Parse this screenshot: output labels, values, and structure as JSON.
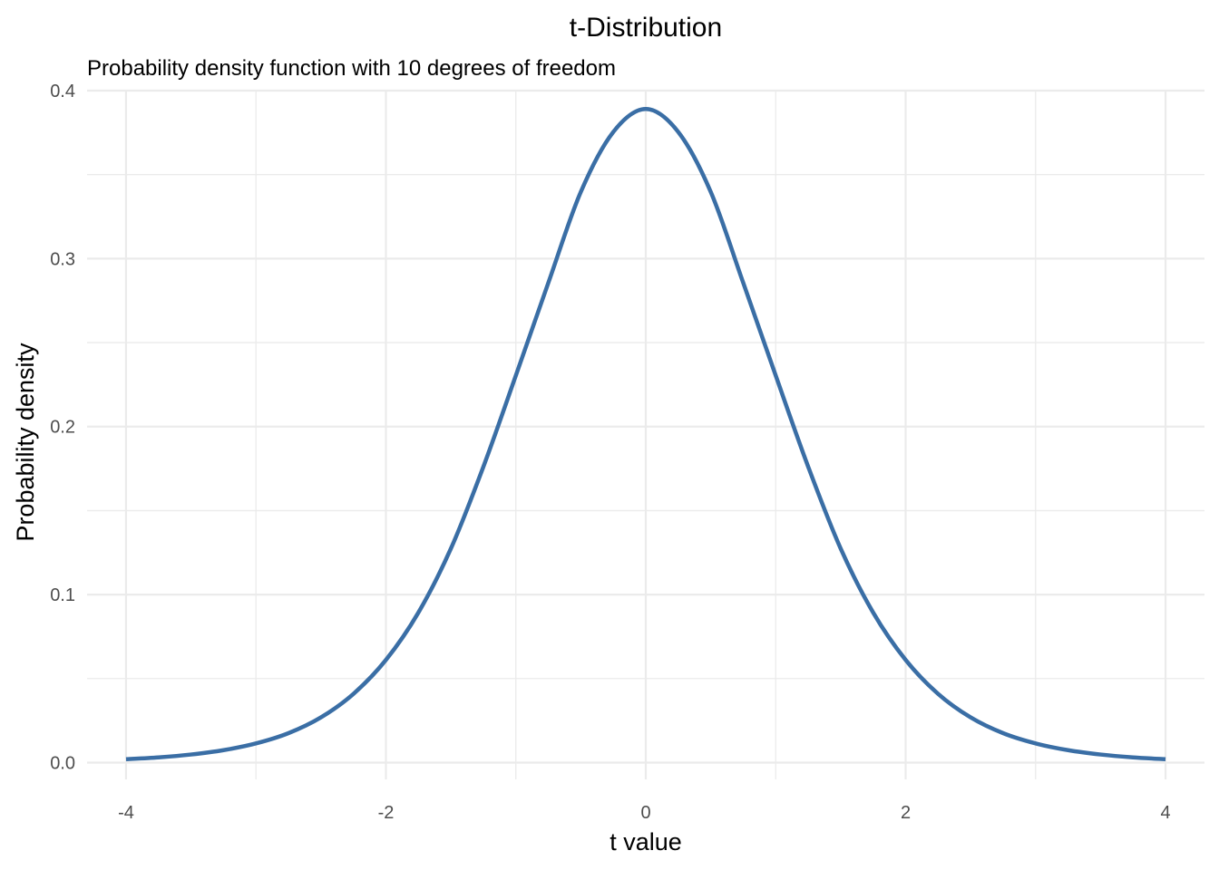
{
  "chart_data": {
    "type": "line",
    "title": "t-Distribution",
    "subtitle": "Probability density function with 10 degrees of freedom",
    "xlabel": "t value",
    "ylabel": "Probability density",
    "xlim": [
      -4.3,
      4.3
    ],
    "ylim": [
      -0.01,
      0.4
    ],
    "x_ticks": [
      -4,
      -2,
      0,
      2,
      4
    ],
    "x_tick_labels": [
      "-4",
      "-2",
      "0",
      "2",
      "4"
    ],
    "x_minor_ticks": [
      -3,
      -1,
      1,
      3
    ],
    "y_ticks": [
      0.0,
      0.1,
      0.2,
      0.3,
      0.4
    ],
    "y_tick_labels": [
      "0.0",
      "0.1",
      "0.2",
      "0.3",
      "0.4"
    ],
    "y_minor_ticks": [
      0.05,
      0.15,
      0.25,
      0.35
    ],
    "grid": true,
    "legend": "none",
    "line_color": "#3a6ea5",
    "series": [
      {
        "x": [
          -4.0,
          -3.75,
          -3.5,
          -3.25,
          -3.0,
          -2.75,
          -2.5,
          -2.25,
          -2.0,
          -1.75,
          -1.5,
          -1.25,
          -1.0,
          -0.75,
          -0.5,
          -0.25,
          0.0,
          0.25,
          0.5,
          0.75,
          1.0,
          1.25,
          1.5,
          1.75,
          2.0,
          2.25,
          2.5,
          2.75,
          3.0,
          3.25,
          3.5,
          3.75,
          4.0
        ],
        "y": [
          0.002,
          0.0031,
          0.0048,
          0.0074,
          0.0114,
          0.0175,
          0.0269,
          0.0409,
          0.0611,
          0.0893,
          0.1274,
          0.1761,
          0.2304,
          0.2856,
          0.3397,
          0.3754,
          0.3891,
          0.3754,
          0.3397,
          0.2856,
          0.2304,
          0.1761,
          0.1274,
          0.0893,
          0.0611,
          0.0409,
          0.0269,
          0.0175,
          0.0114,
          0.0074,
          0.0048,
          0.0031,
          0.002
        ]
      }
    ]
  }
}
